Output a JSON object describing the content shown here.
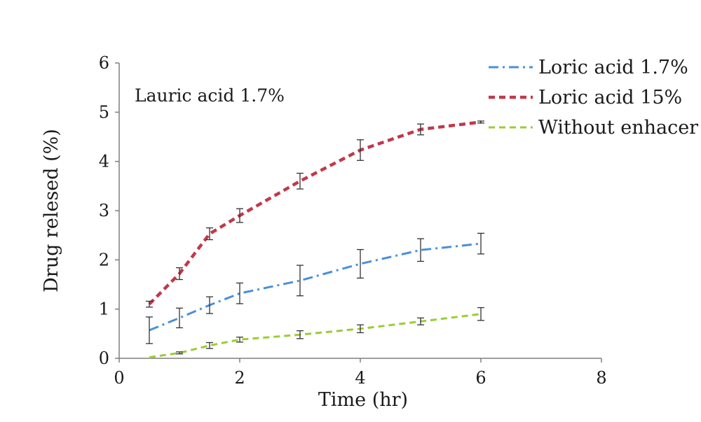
{
  "chart_data": {
    "type": "line",
    "title": "",
    "annotation": "Lauric acid 1.7%",
    "xlabel": "Time (hr)",
    "ylabel": "Drug relesed (%)",
    "xlim": [
      0,
      8
    ],
    "ylim": [
      0,
      6
    ],
    "xticks": [
      0,
      2,
      4,
      6,
      8
    ],
    "yticks": [
      0,
      1,
      2,
      3,
      4,
      5,
      6
    ],
    "grid": false,
    "legend_position": "top-right",
    "series": [
      {
        "name": "Loric acid 1.7%",
        "color": "#4a90d9",
        "dash": "dash-dot",
        "x": [
          0.5,
          1,
          1.5,
          2,
          3,
          4,
          5,
          6
        ],
        "y": [
          0.57,
          0.82,
          1.08,
          1.32,
          1.58,
          1.92,
          2.2,
          2.33
        ],
        "error": [
          0.27,
          0.2,
          0.17,
          0.21,
          0.31,
          0.29,
          0.23,
          0.21
        ]
      },
      {
        "name": "Loric acid 15%",
        "color": "#c0394b",
        "dash": "dash",
        "x": [
          0.5,
          1,
          1.5,
          2,
          3,
          4,
          5,
          6
        ],
        "y": [
          1.1,
          1.72,
          2.53,
          2.9,
          3.6,
          4.23,
          4.65,
          4.8
        ],
        "error": [
          0.06,
          0.12,
          0.12,
          0.14,
          0.16,
          0.21,
          0.11,
          0.02
        ]
      },
      {
        "name": "Without enhacer",
        "color": "#9acd32",
        "dash": "dash",
        "x": [
          0.5,
          1,
          1.5,
          2,
          3,
          4,
          5,
          6
        ],
        "y": [
          0.02,
          0.11,
          0.26,
          0.38,
          0.48,
          0.6,
          0.75,
          0.9
        ],
        "error": [
          0.0,
          0.02,
          0.06,
          0.05,
          0.08,
          0.08,
          0.07,
          0.13
        ]
      }
    ]
  }
}
